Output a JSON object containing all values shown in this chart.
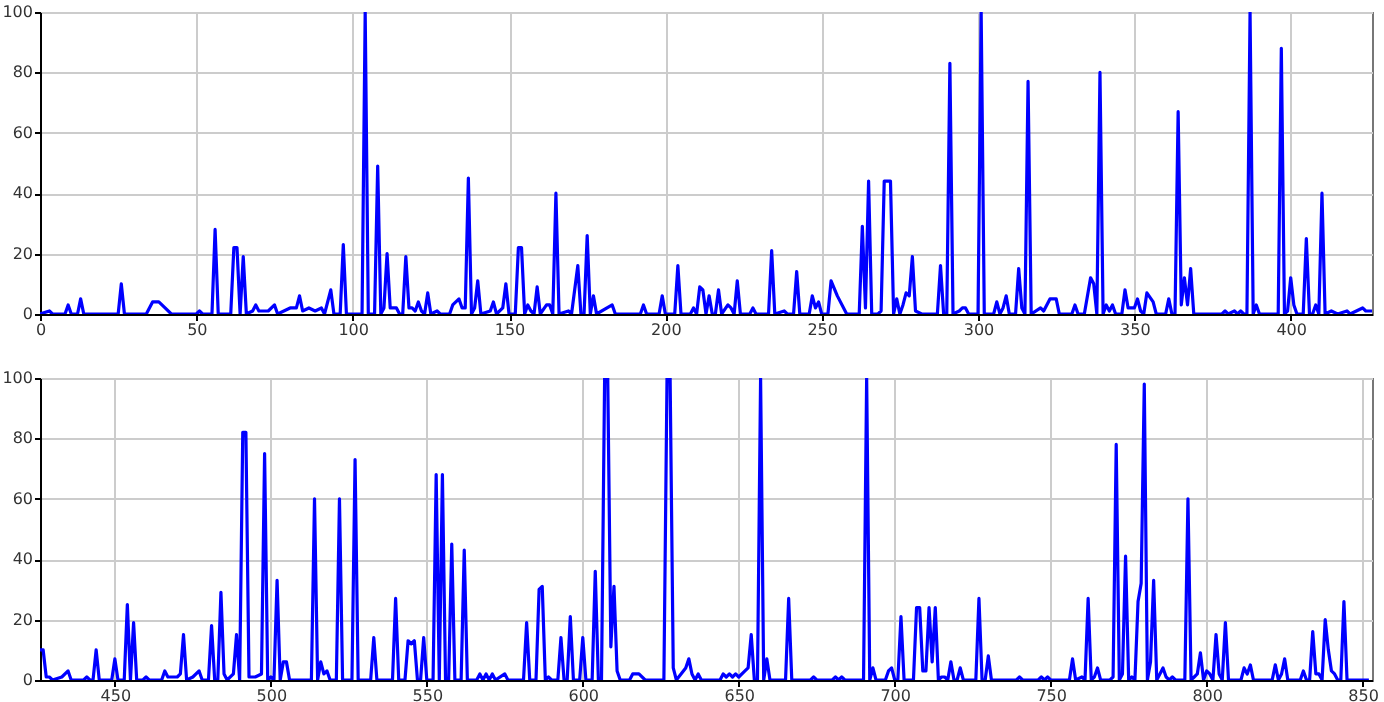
{
  "chart_data": [
    {
      "type": "line",
      "grid": true,
      "line_style": "solid",
      "xlim": [
        0,
        426
      ],
      "xticks": [
        0,
        50,
        100,
        150,
        200,
        250,
        300,
        350,
        400
      ],
      "ylim": [
        0,
        100
      ],
      "yticks": [
        0,
        20,
        40,
        60,
        80,
        100
      ],
      "x": [
        0,
        3,
        4,
        8,
        9,
        10,
        12,
        13,
        14,
        25,
        26,
        27,
        34,
        36,
        38,
        40,
        42,
        50,
        51,
        52,
        55,
        56,
        57,
        61,
        62,
        63,
        64,
        65,
        66,
        68,
        69,
        70,
        73,
        75,
        76,
        80,
        82,
        83,
        84,
        86,
        88,
        90,
        91,
        93,
        94,
        96,
        97,
        98,
        103,
        104,
        105,
        107,
        108,
        109,
        110,
        111,
        112,
        114,
        115,
        116,
        117,
        118,
        119,
        120,
        121,
        122,
        123,
        124,
        125,
        127,
        128,
        131,
        132,
        134,
        135,
        136,
        137,
        138,
        139,
        140,
        141,
        144,
        145,
        146,
        148,
        149,
        150,
        152,
        153,
        154,
        155,
        156,
        157,
        158,
        159,
        160,
        162,
        163,
        164,
        165,
        166,
        169,
        170,
        172,
        173,
        174,
        175,
        176,
        177,
        178,
        183,
        184,
        192,
        193,
        194,
        198,
        199,
        200,
        203,
        204,
        205,
        208,
        209,
        210,
        211,
        212,
        213,
        214,
        215,
        216,
        217,
        218,
        220,
        221,
        222,
        223,
        224,
        227,
        228,
        229,
        233,
        234,
        235,
        238,
        239,
        241,
        242,
        243,
        246,
        247,
        248,
        249,
        250,
        252,
        253,
        255,
        258,
        262,
        263,
        264,
        265,
        266,
        268,
        269,
        270,
        272,
        273,
        274,
        275,
        276,
        277,
        278,
        279,
        280,
        282,
        287,
        288,
        289,
        290,
        291,
        292,
        294,
        295,
        296,
        297,
        300,
        301,
        302,
        305,
        306,
        307,
        308,
        309,
        310,
        312,
        313,
        314,
        315,
        316,
        317,
        320,
        321,
        323,
        325,
        326,
        330,
        331,
        332,
        334,
        336,
        337,
        338,
        339,
        340,
        341,
        342,
        343,
        344,
        346,
        347,
        348,
        350,
        351,
        352,
        353,
        354,
        356,
        357,
        360,
        361,
        362,
        363,
        364,
        365,
        366,
        367,
        368,
        369,
        378,
        379,
        380,
        382,
        383,
        384,
        385,
        386,
        387,
        388,
        389,
        390,
        396,
        397,
        398,
        399,
        400,
        401,
        402,
        404,
        405,
        406,
        407,
        408,
        409,
        410,
        411,
        413,
        415,
        418,
        419,
        421,
        423,
        424,
        426
      ],
      "series": [
        {
          "color": "#0000ff",
          "values": [
            0,
            1,
            0,
            0,
            3,
            0,
            0,
            5,
            0,
            0,
            10,
            0,
            0,
            4,
            4,
            2,
            0,
            0,
            1,
            0,
            0,
            28,
            0,
            0,
            22,
            22,
            0,
            19,
            0,
            1,
            3,
            1,
            1,
            3,
            0,
            2,
            2,
            6,
            1,
            2,
            1,
            2,
            0,
            8,
            0,
            0,
            23,
            0,
            0,
            100,
            0,
            0,
            49,
            0,
            2,
            20,
            2,
            2,
            0,
            0,
            19,
            2,
            2,
            1,
            4,
            1,
            0,
            7,
            0,
            1,
            0,
            0,
            3,
            5,
            2,
            2,
            45,
            0,
            2,
            11,
            0,
            1,
            4,
            0,
            2,
            10,
            0,
            0,
            22,
            22,
            0,
            3,
            1,
            0,
            9,
            0,
            3,
            3,
            0,
            40,
            0,
            1,
            0,
            16,
            0,
            0,
            26,
            0,
            6,
            0,
            3,
            0,
            0,
            3,
            0,
            0,
            6,
            0,
            0,
            16,
            0,
            0,
            2,
            0,
            9,
            8,
            0,
            6,
            0,
            0,
            8,
            0,
            3,
            2,
            0,
            11,
            0,
            0,
            2,
            0,
            0,
            21,
            0,
            1,
            0,
            0,
            14,
            0,
            0,
            6,
            2,
            4,
            0,
            0,
            11,
            6,
            0,
            0,
            29,
            2,
            44,
            0,
            0,
            1,
            44,
            44,
            0,
            5,
            0,
            3,
            7,
            6,
            19,
            1,
            0,
            0,
            16,
            0,
            0,
            83,
            0,
            1,
            2,
            2,
            0,
            0,
            100,
            0,
            0,
            4,
            0,
            2,
            6,
            0,
            0,
            15,
            2,
            0,
            77,
            0,
            2,
            1,
            5,
            5,
            0,
            0,
            3,
            0,
            0,
            12,
            10,
            0,
            80,
            0,
            3,
            1,
            3,
            0,
            0,
            8,
            2,
            2,
            5,
            1,
            0,
            7,
            4,
            0,
            0,
            5,
            0,
            0,
            67,
            3,
            12,
            3,
            15,
            0,
            0,
            1,
            0,
            1,
            0,
            1,
            0,
            0,
            100,
            0,
            3,
            0,
            0,
            88,
            0,
            1,
            12,
            3,
            0,
            0,
            25,
            0,
            0,
            3,
            0,
            40,
            0,
            1,
            0,
            1,
            0,
            1,
            2,
            1,
            1
          ]
        }
      ]
    },
    {
      "type": "line",
      "grid": true,
      "line_style": "solid",
      "xlim": [
        426,
        853
      ],
      "xticks": [
        450,
        500,
        550,
        600,
        650,
        700,
        750,
        800,
        850
      ],
      "ylim": [
        0,
        100
      ],
      "yticks": [
        0,
        20,
        40,
        60,
        80,
        100
      ],
      "x": [
        426,
        427,
        428,
        429,
        430,
        433,
        435,
        436,
        440,
        441,
        442,
        443,
        444,
        445,
        449,
        450,
        451,
        453,
        454,
        455,
        456,
        457,
        459,
        460,
        461,
        465,
        466,
        467,
        470,
        471,
        472,
        473,
        475,
        477,
        478,
        480,
        481,
        482,
        483,
        484,
        485,
        486,
        488,
        489,
        490,
        491,
        492,
        493,
        495,
        497,
        498,
        499,
        500,
        501,
        502,
        503,
        504,
        505,
        506,
        513,
        514,
        515,
        516,
        517,
        518,
        519,
        521,
        522,
        523,
        526,
        527,
        528,
        532,
        533,
        534,
        539,
        540,
        541,
        543,
        544,
        545,
        546,
        547,
        548,
        549,
        550,
        552,
        553,
        554,
        555,
        556,
        557,
        558,
        559,
        561,
        562,
        563,
        566,
        567,
        568,
        569,
        570,
        571,
        572,
        575,
        576,
        581,
        582,
        583,
        585,
        586,
        587,
        588,
        589,
        590,
        592,
        593,
        594,
        595,
        596,
        597,
        599,
        600,
        601,
        603,
        604,
        605,
        606,
        607,
        608,
        609,
        610,
        611,
        612,
        615,
        616,
        618,
        620,
        626,
        627,
        628,
        629,
        630,
        633,
        634,
        635,
        636,
        637,
        638,
        644,
        645,
        646,
        647,
        648,
        649,
        650,
        652,
        653,
        654,
        655,
        656,
        657,
        658,
        659,
        660,
        665,
        666,
        667,
        673,
        674,
        675,
        680,
        681,
        682,
        683,
        684,
        690,
        691,
        692,
        693,
        694,
        697,
        698,
        699,
        700,
        701,
        702,
        703,
        706,
        707,
        708,
        709,
        710,
        711,
        712,
        713,
        714,
        715,
        716,
        717,
        718,
        719,
        720,
        721,
        722,
        726,
        727,
        728,
        729,
        730,
        731,
        739,
        740,
        741,
        746,
        747,
        748,
        749,
        750,
        756,
        757,
        758,
        760,
        761,
        762,
        763,
        764,
        765,
        766,
        769,
        770,
        771,
        772,
        773,
        774,
        775,
        776,
        777,
        778,
        779,
        780,
        781,
        782,
        783,
        784,
        785,
        786,
        787,
        788,
        789,
        790,
        793,
        794,
        795,
        796,
        797,
        798,
        799,
        800,
        801,
        802,
        803,
        804,
        805,
        806,
        807,
        811,
        812,
        813,
        814,
        815,
        821,
        822,
        823,
        824,
        825,
        826,
        830,
        831,
        832,
        833,
        834,
        835,
        836,
        837,
        838,
        839,
        840,
        841,
        842,
        843,
        844,
        845,
        852
      ],
      "series": [
        {
          "color": "#0000ff",
          "values": [
            10,
            10,
            1,
            1,
            0,
            1,
            3,
            0,
            0,
            1,
            0,
            0,
            10,
            0,
            0,
            7,
            0,
            0,
            25,
            0,
            19,
            0,
            0,
            1,
            0,
            0,
            3,
            1,
            1,
            2,
            15,
            0,
            1,
            3,
            0,
            0,
            18,
            0,
            0,
            29,
            2,
            0,
            2,
            15,
            0,
            82,
            82,
            1,
            1,
            2,
            75,
            0,
            1,
            0,
            33,
            0,
            6,
            6,
            0,
            0,
            60,
            0,
            6,
            2,
            3,
            0,
            0,
            60,
            0,
            0,
            73,
            0,
            0,
            14,
            0,
            0,
            27,
            0,
            0,
            13,
            12,
            13,
            0,
            0,
            14,
            0,
            0,
            68,
            0,
            68,
            0,
            0,
            45,
            0,
            0,
            43,
            0,
            0,
            2,
            0,
            2,
            0,
            2,
            0,
            2,
            0,
            0,
            19,
            0,
            0,
            30,
            31,
            0,
            1,
            0,
            0,
            14,
            0,
            0,
            21,
            0,
            0,
            14,
            0,
            0,
            36,
            0,
            0,
            100,
            100,
            11,
            31,
            3,
            0,
            0,
            2,
            2,
            0,
            0,
            100,
            100,
            4,
            0,
            4,
            7,
            2,
            0,
            2,
            0,
            0,
            2,
            1,
            2,
            1,
            2,
            1,
            3,
            4,
            15,
            0,
            0,
            100,
            0,
            7,
            0,
            0,
            27,
            0,
            0,
            1,
            0,
            0,
            1,
            0,
            1,
            0,
            0,
            100,
            0,
            4,
            0,
            0,
            3,
            4,
            0,
            0,
            21,
            0,
            0,
            24,
            24,
            3,
            3,
            24,
            6,
            24,
            0,
            1,
            1,
            0,
            6,
            0,
            0,
            4,
            0,
            0,
            27,
            0,
            0,
            8,
            0,
            0,
            1,
            0,
            0,
            1,
            0,
            1,
            0,
            0,
            7,
            0,
            1,
            0,
            27,
            0,
            1,
            4,
            0,
            0,
            1,
            78,
            0,
            2,
            41,
            0,
            1,
            0,
            26,
            32,
            98,
            0,
            6,
            33,
            0,
            2,
            4,
            1,
            0,
            1,
            0,
            0,
            60,
            0,
            1,
            2,
            9,
            0,
            3,
            2,
            0,
            15,
            2,
            0,
            19,
            0,
            0,
            4,
            2,
            5,
            0,
            0,
            5,
            0,
            2,
            7,
            0,
            0,
            3,
            0,
            0,
            16,
            2,
            2,
            0,
            20,
            10,
            3,
            2,
            0,
            0,
            26,
            0,
            0
          ]
        }
      ]
    }
  ]
}
